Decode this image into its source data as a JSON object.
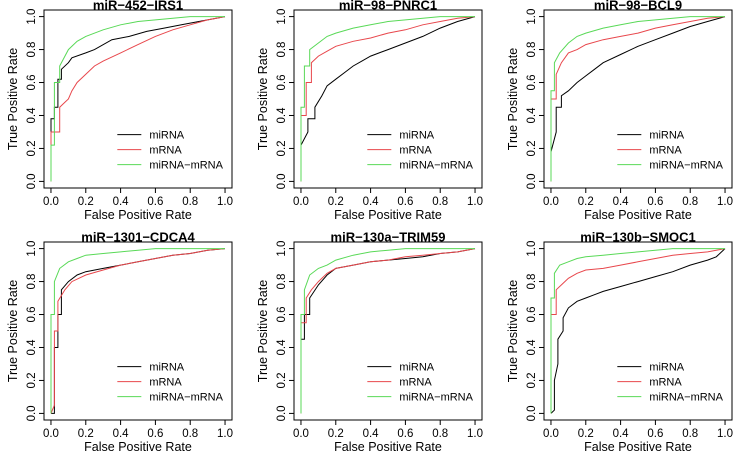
{
  "chart_data": [
    {
      "type": "line",
      "title": "miR−452−IRS1",
      "xlabel": "False Positive Rate",
      "ylabel": "True Positive Rate",
      "xlim": [
        0,
        1
      ],
      "ylim": [
        0,
        1
      ],
      "xticks": [
        "0.0",
        "0.2",
        "0.4",
        "0.6",
        "0.8",
        "1.0"
      ],
      "yticks": [
        "0.0",
        "0.2",
        "0.4",
        "0.6",
        "0.8",
        "1.0"
      ],
      "legend_position": "bottom-right",
      "series": [
        {
          "name": "miRNA",
          "color": "#000000",
          "x": [
            0,
            0,
            0.02,
            0.02,
            0.04,
            0.04,
            0.06,
            0.06,
            0.1,
            0.12,
            0.2,
            0.25,
            0.35,
            0.45,
            0.55,
            0.65,
            0.75,
            0.85,
            0.95,
            1.0
          ],
          "y": [
            0,
            0.38,
            0.38,
            0.45,
            0.45,
            0.62,
            0.62,
            0.68,
            0.72,
            0.75,
            0.78,
            0.8,
            0.86,
            0.88,
            0.91,
            0.93,
            0.95,
            0.97,
            0.99,
            1.0
          ]
        },
        {
          "name": "mRNA",
          "color": "#e8474c",
          "x": [
            0,
            0,
            0.05,
            0.05,
            0.08,
            0.1,
            0.12,
            0.15,
            0.2,
            0.25,
            0.3,
            0.4,
            0.5,
            0.6,
            0.7,
            0.8,
            0.9,
            1.0
          ],
          "y": [
            0,
            0.3,
            0.3,
            0.45,
            0.48,
            0.5,
            0.55,
            0.6,
            0.65,
            0.7,
            0.73,
            0.78,
            0.83,
            0.88,
            0.92,
            0.95,
            0.98,
            1.0
          ]
        },
        {
          "name": "miRNA−mRNA",
          "color": "#59d957",
          "x": [
            0,
            0,
            0.02,
            0.02,
            0.05,
            0.05,
            0.1,
            0.15,
            0.2,
            0.3,
            0.4,
            0.5,
            0.6,
            0.7,
            0.8,
            0.9,
            1.0
          ],
          "y": [
            0,
            0.22,
            0.22,
            0.6,
            0.6,
            0.7,
            0.8,
            0.85,
            0.88,
            0.92,
            0.95,
            0.97,
            0.98,
            0.99,
            1.0,
            1.0,
            1.0
          ]
        }
      ],
      "legend": [
        "miRNA",
        "mRNA",
        "miRNA−mRNA"
      ]
    },
    {
      "type": "line",
      "title": "miR−98−PNRC1",
      "xlabel": "False Positive Rate",
      "ylabel": "True Positive Rate",
      "xlim": [
        0,
        1
      ],
      "ylim": [
        0,
        1
      ],
      "xticks": [
        "0.0",
        "0.2",
        "0.4",
        "0.6",
        "0.8",
        "1.0"
      ],
      "yticks": [
        "0.0",
        "0.2",
        "0.4",
        "0.6",
        "0.8",
        "1.0"
      ],
      "legend_position": "bottom-right",
      "series": [
        {
          "name": "miRNA",
          "color": "#000000",
          "x": [
            0,
            0,
            0.04,
            0.04,
            0.08,
            0.08,
            0.12,
            0.15,
            0.2,
            0.25,
            0.3,
            0.35,
            0.4,
            0.5,
            0.6,
            0.7,
            0.8,
            0.9,
            1.0
          ],
          "y": [
            0,
            0.22,
            0.3,
            0.38,
            0.38,
            0.45,
            0.52,
            0.58,
            0.62,
            0.66,
            0.7,
            0.73,
            0.76,
            0.8,
            0.84,
            0.88,
            0.93,
            0.97,
            1.0
          ]
        },
        {
          "name": "mRNA",
          "color": "#e8474c",
          "x": [
            0,
            0,
            0.03,
            0.03,
            0.06,
            0.06,
            0.1,
            0.15,
            0.2,
            0.3,
            0.4,
            0.5,
            0.6,
            0.7,
            0.8,
            0.9,
            1.0
          ],
          "y": [
            0,
            0.4,
            0.4,
            0.6,
            0.6,
            0.72,
            0.76,
            0.79,
            0.82,
            0.85,
            0.87,
            0.9,
            0.92,
            0.95,
            0.97,
            0.99,
            1.0
          ]
        },
        {
          "name": "miRNA−mRNA",
          "color": "#59d957",
          "x": [
            0,
            0,
            0.02,
            0.02,
            0.05,
            0.05,
            0.1,
            0.15,
            0.2,
            0.3,
            0.4,
            0.5,
            0.6,
            0.7,
            0.8,
            0.9,
            1.0
          ],
          "y": [
            0,
            0.45,
            0.45,
            0.7,
            0.7,
            0.8,
            0.84,
            0.88,
            0.9,
            0.93,
            0.95,
            0.97,
            0.98,
            0.99,
            1.0,
            1.0,
            1.0
          ]
        }
      ],
      "legend": [
        "miRNA",
        "mRNA",
        "miRNA−mRNA"
      ]
    },
    {
      "type": "line",
      "title": "miR−98−BCL9",
      "xlabel": "False Positive Rate",
      "ylabel": "True Positive Rate",
      "xlim": [
        0,
        1
      ],
      "ylim": [
        0,
        1
      ],
      "xticks": [
        "0.0",
        "0.2",
        "0.4",
        "0.6",
        "0.8",
        "1.0"
      ],
      "yticks": [
        "0.0",
        "0.2",
        "0.4",
        "0.6",
        "0.8",
        "1.0"
      ],
      "legend_position": "bottom-right",
      "series": [
        {
          "name": "miRNA",
          "color": "#000000",
          "x": [
            0,
            0,
            0.03,
            0.03,
            0.06,
            0.06,
            0.1,
            0.15,
            0.2,
            0.25,
            0.3,
            0.4,
            0.5,
            0.6,
            0.7,
            0.8,
            0.9,
            1.0
          ],
          "y": [
            0,
            0.18,
            0.3,
            0.45,
            0.45,
            0.52,
            0.55,
            0.6,
            0.64,
            0.68,
            0.72,
            0.77,
            0.82,
            0.86,
            0.9,
            0.94,
            0.97,
            1.0
          ]
        },
        {
          "name": "mRNA",
          "color": "#e8474c",
          "x": [
            0,
            0,
            0.03,
            0.03,
            0.06,
            0.1,
            0.15,
            0.2,
            0.3,
            0.4,
            0.5,
            0.6,
            0.7,
            0.8,
            0.9,
            1.0
          ],
          "y": [
            0,
            0.5,
            0.5,
            0.65,
            0.72,
            0.78,
            0.8,
            0.83,
            0.86,
            0.88,
            0.9,
            0.93,
            0.95,
            0.97,
            0.99,
            1.0
          ]
        },
        {
          "name": "miRNA−mRNA",
          "color": "#59d957",
          "x": [
            0,
            0,
            0.02,
            0.02,
            0.05,
            0.1,
            0.15,
            0.2,
            0.3,
            0.4,
            0.5,
            0.6,
            0.7,
            0.8,
            0.9,
            1.0
          ],
          "y": [
            0,
            0.55,
            0.55,
            0.72,
            0.78,
            0.84,
            0.88,
            0.9,
            0.93,
            0.95,
            0.97,
            0.98,
            0.99,
            1.0,
            1.0,
            1.0
          ]
        }
      ],
      "legend": [
        "miRNA",
        "mRNA",
        "miRNA−mRNA"
      ]
    },
    {
      "type": "line",
      "title": "miR−1301−CDCA4",
      "xlabel": "False Positive Rate",
      "ylabel": "True Positive Rate",
      "xlim": [
        0,
        1
      ],
      "ylim": [
        0,
        1
      ],
      "xticks": [
        "0.0",
        "0.2",
        "0.4",
        "0.6",
        "0.8",
        "1.0"
      ],
      "yticks": [
        "0.0",
        "0.2",
        "0.4",
        "0.6",
        "0.8",
        "1.0"
      ],
      "legend_position": "bottom-right",
      "series": [
        {
          "name": "miRNA",
          "color": "#000000",
          "x": [
            0,
            0.02,
            0.02,
            0.04,
            0.04,
            0.06,
            0.06,
            0.1,
            0.15,
            0.2,
            0.3,
            0.4,
            0.5,
            0.6,
            0.7,
            0.8,
            0.9,
            1.0
          ],
          "y": [
            0,
            0,
            0.4,
            0.4,
            0.6,
            0.6,
            0.75,
            0.8,
            0.84,
            0.86,
            0.88,
            0.9,
            0.92,
            0.94,
            0.96,
            0.97,
            0.99,
            1.0
          ]
        },
        {
          "name": "mRNA",
          "color": "#e8474c",
          "x": [
            0,
            0.02,
            0.02,
            0.04,
            0.04,
            0.08,
            0.12,
            0.2,
            0.3,
            0.4,
            0.5,
            0.6,
            0.7,
            0.8,
            0.9,
            1.0
          ],
          "y": [
            0,
            0.05,
            0.5,
            0.5,
            0.68,
            0.75,
            0.8,
            0.84,
            0.87,
            0.9,
            0.92,
            0.94,
            0.96,
            0.97,
            0.99,
            1.0
          ]
        },
        {
          "name": "miRNA−mRNA",
          "color": "#59d957",
          "x": [
            0,
            0,
            0.02,
            0.02,
            0.05,
            0.1,
            0.15,
            0.2,
            0.3,
            0.4,
            0.5,
            0.6,
            0.7,
            0.8,
            0.9,
            1.0
          ],
          "y": [
            0,
            0.6,
            0.6,
            0.8,
            0.88,
            0.92,
            0.94,
            0.96,
            0.97,
            0.98,
            0.99,
            1.0,
            1.0,
            1.0,
            1.0,
            1.0
          ]
        }
      ],
      "legend": [
        "miRNA",
        "mRNA",
        "miRNA−mRNA"
      ]
    },
    {
      "type": "line",
      "title": "miR−130a−TRIM59",
      "xlabel": "False Positive Rate",
      "ylabel": "True Positive Rate",
      "xlim": [
        0,
        1
      ],
      "ylim": [
        0,
        1
      ],
      "xticks": [
        "0.0",
        "0.2",
        "0.4",
        "0.6",
        "0.8",
        "1.0"
      ],
      "yticks": [
        "0.0",
        "0.2",
        "0.4",
        "0.6",
        "0.8",
        "1.0"
      ],
      "legend_position": "bottom-right",
      "series": [
        {
          "name": "miRNA",
          "color": "#000000",
          "x": [
            0,
            0,
            0.02,
            0.02,
            0.05,
            0.05,
            0.1,
            0.15,
            0.2,
            0.3,
            0.4,
            0.5,
            0.6,
            0.7,
            0.8,
            0.9,
            1.0
          ],
          "y": [
            0,
            0.45,
            0.45,
            0.6,
            0.6,
            0.7,
            0.78,
            0.84,
            0.88,
            0.9,
            0.92,
            0.93,
            0.94,
            0.95,
            0.97,
            0.98,
            1.0
          ]
        },
        {
          "name": "mRNA",
          "color": "#e8474c",
          "x": [
            0,
            0,
            0.03,
            0.03,
            0.06,
            0.1,
            0.15,
            0.2,
            0.3,
            0.4,
            0.5,
            0.6,
            0.7,
            0.8,
            0.9,
            1.0
          ],
          "y": [
            0,
            0.55,
            0.55,
            0.7,
            0.75,
            0.8,
            0.85,
            0.88,
            0.9,
            0.92,
            0.93,
            0.95,
            0.96,
            0.97,
            0.98,
            1.0
          ]
        },
        {
          "name": "miRNA−mRNA",
          "color": "#59d957",
          "x": [
            0,
            0,
            0.02,
            0.02,
            0.05,
            0.1,
            0.15,
            0.2,
            0.3,
            0.4,
            0.5,
            0.6,
            0.7,
            0.8,
            0.9,
            1.0
          ],
          "y": [
            0,
            0.6,
            0.6,
            0.75,
            0.84,
            0.88,
            0.9,
            0.93,
            0.96,
            0.98,
            0.99,
            1.0,
            1.0,
            1.0,
            1.0,
            1.0
          ]
        }
      ],
      "legend": [
        "miRNA",
        "mRNA",
        "miRNA−mRNA"
      ]
    },
    {
      "type": "line",
      "title": "miR−130b−SMOC1",
      "xlabel": "False Positive Rate",
      "ylabel": "True Positive Rate",
      "xlim": [
        0,
        1
      ],
      "ylim": [
        0,
        1
      ],
      "xticks": [
        "0.0",
        "0.2",
        "0.4",
        "0.6",
        "0.8",
        "1.0"
      ],
      "yticks": [
        "0.0",
        "0.2",
        "0.4",
        "0.6",
        "0.8",
        "1.0"
      ],
      "legend_position": "bottom-right",
      "series": [
        {
          "name": "miRNA",
          "color": "#000000",
          "x": [
            0,
            0.02,
            0.02,
            0.04,
            0.04,
            0.07,
            0.07,
            0.1,
            0.15,
            0.2,
            0.25,
            0.3,
            0.4,
            0.5,
            0.6,
            0.7,
            0.8,
            0.9,
            0.95,
            1.0
          ],
          "y": [
            0,
            0.02,
            0.2,
            0.3,
            0.45,
            0.5,
            0.58,
            0.64,
            0.68,
            0.7,
            0.72,
            0.74,
            0.77,
            0.8,
            0.83,
            0.86,
            0.9,
            0.93,
            0.95,
            1.0
          ]
        },
        {
          "name": "mRNA",
          "color": "#e8474c",
          "x": [
            0,
            0,
            0.03,
            0.03,
            0.06,
            0.1,
            0.15,
            0.2,
            0.3,
            0.4,
            0.5,
            0.6,
            0.7,
            0.8,
            0.9,
            1.0
          ],
          "y": [
            0,
            0.6,
            0.6,
            0.75,
            0.78,
            0.82,
            0.85,
            0.87,
            0.88,
            0.9,
            0.92,
            0.94,
            0.96,
            0.97,
            0.98,
            1.0
          ]
        },
        {
          "name": "miRNA−mRNA",
          "color": "#59d957",
          "x": [
            0,
            0,
            0.02,
            0.02,
            0.05,
            0.1,
            0.15,
            0.2,
            0.3,
            0.4,
            0.5,
            0.6,
            0.7,
            0.8,
            0.9,
            1.0
          ],
          "y": [
            0,
            0.7,
            0.7,
            0.85,
            0.9,
            0.92,
            0.94,
            0.95,
            0.96,
            0.97,
            0.98,
            0.99,
            1.0,
            1.0,
            1.0,
            1.0
          ]
        }
      ],
      "legend": [
        "miRNA",
        "mRNA",
        "miRNA−mRNA"
      ]
    }
  ]
}
